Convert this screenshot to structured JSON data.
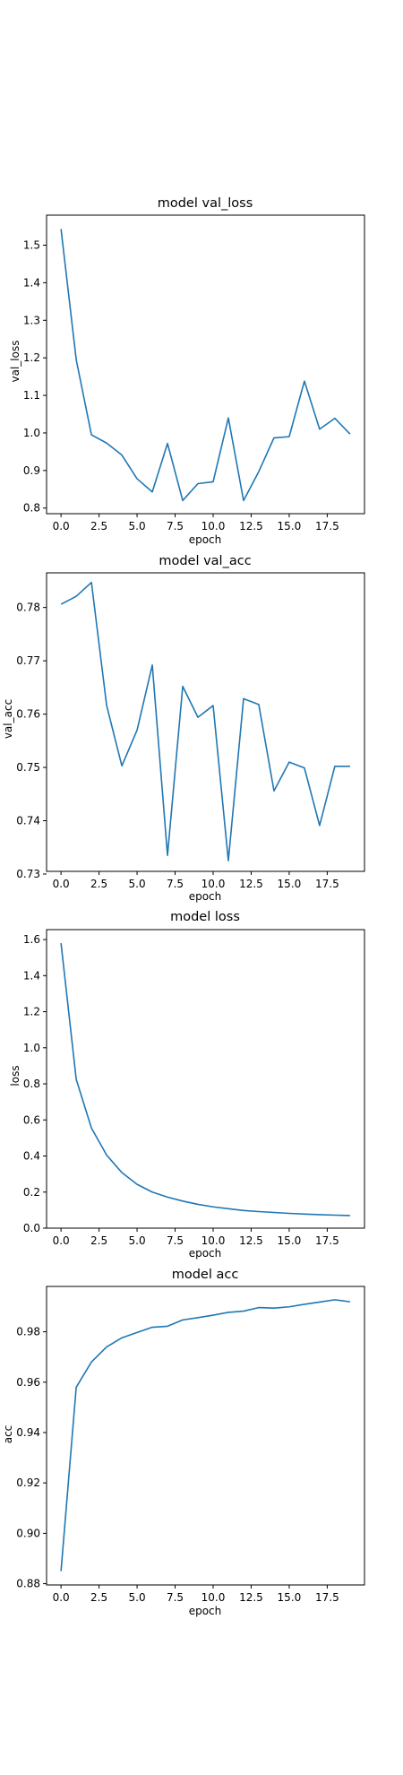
{
  "chart_data": [
    {
      "type": "line",
      "title": "model val_loss",
      "xlabel": "epoch",
      "ylabel": "val_loss",
      "xlim": [
        -0.95,
        19.95
      ],
      "ylim": [
        0.785,
        1.58
      ],
      "x_ticks": [
        0,
        2.5,
        5,
        7.5,
        10,
        12.5,
        15,
        17.5
      ],
      "x_tick_labels": [
        "0.0",
        "2.5",
        "5.0",
        "7.5",
        "10.0",
        "12.5",
        "15.0",
        "17.5"
      ],
      "y_ticks": [
        0.8,
        0.9,
        1.0,
        1.1,
        1.2,
        1.3,
        1.4,
        1.5
      ],
      "y_tick_labels": [
        "0.8",
        "0.9",
        "1.0",
        "1.1",
        "1.2",
        "1.3",
        "1.4",
        "1.5"
      ],
      "grid": false,
      "color": "#1f77b4",
      "x": [
        0,
        1,
        2,
        3,
        4,
        5,
        6,
        7,
        8,
        9,
        10,
        11,
        12,
        13,
        14,
        15,
        16,
        17,
        18,
        19
      ],
      "values": [
        1.543,
        1.195,
        0.995,
        0.973,
        0.941,
        0.878,
        0.843,
        0.972,
        0.82,
        0.865,
        0.87,
        1.04,
        0.82,
        0.897,
        0.987,
        0.99,
        1.138,
        1.01,
        1.039,
        0.997
      ]
    },
    {
      "type": "line",
      "title": "model val_acc",
      "xlabel": "epoch",
      "ylabel": "val_acc",
      "xlim": [
        -0.95,
        19.95
      ],
      "ylim": [
        0.7305,
        0.7865
      ],
      "x_ticks": [
        0,
        2.5,
        5,
        7.5,
        10,
        12.5,
        15,
        17.5
      ],
      "x_tick_labels": [
        "0.0",
        "2.5",
        "5.0",
        "7.5",
        "10.0",
        "12.5",
        "15.0",
        "17.5"
      ],
      "y_ticks": [
        0.73,
        0.74,
        0.75,
        0.76,
        0.77,
        0.78
      ],
      "y_tick_labels": [
        "0.73",
        "0.74",
        "0.75",
        "0.76",
        "0.77",
        "0.78"
      ],
      "grid": false,
      "color": "#1f77b4",
      "x": [
        0,
        1,
        2,
        3,
        4,
        5,
        6,
        7,
        8,
        9,
        10,
        11,
        12,
        13,
        14,
        15,
        16,
        17,
        18,
        19
      ],
      "values": [
        0.7806,
        0.7821,
        0.7847,
        0.7616,
        0.7503,
        0.757,
        0.7692,
        0.7335,
        0.7652,
        0.7594,
        0.7616,
        0.7325,
        0.7629,
        0.7618,
        0.7456,
        0.751,
        0.7499,
        0.7391,
        0.7502,
        0.7502
      ]
    },
    {
      "type": "line",
      "title": "model loss",
      "xlabel": "epoch",
      "ylabel": "loss",
      "xlim": [
        -0.95,
        19.95
      ],
      "ylim": [
        0.0,
        1.655
      ],
      "x_ticks": [
        0,
        2.5,
        5,
        7.5,
        10,
        12.5,
        15,
        17.5
      ],
      "x_tick_labels": [
        "0.0",
        "2.5",
        "5.0",
        "7.5",
        "10.0",
        "12.5",
        "15.0",
        "17.5"
      ],
      "y_ticks": [
        0.0,
        0.2,
        0.4,
        0.6,
        0.8,
        1.0,
        1.2,
        1.4,
        1.6
      ],
      "y_tick_labels": [
        "0.0",
        "0.2",
        "0.4",
        "0.6",
        "0.8",
        "1.0",
        "1.2",
        "1.4",
        "1.6"
      ],
      "grid": false,
      "color": "#1f77b4",
      "x": [
        0,
        1,
        2,
        3,
        4,
        5,
        6,
        7,
        8,
        9,
        10,
        11,
        12,
        13,
        14,
        15,
        16,
        17,
        18,
        19
      ],
      "values": [
        1.58,
        0.825,
        0.555,
        0.405,
        0.308,
        0.243,
        0.2,
        0.172,
        0.15,
        0.132,
        0.118,
        0.108,
        0.098,
        0.092,
        0.087,
        0.082,
        0.078,
        0.075,
        0.072,
        0.07
      ]
    },
    {
      "type": "line",
      "title": "model acc",
      "xlabel": "epoch",
      "ylabel": "acc",
      "xlim": [
        -0.95,
        19.95
      ],
      "ylim": [
        0.8795,
        0.998
      ],
      "x_ticks": [
        0,
        2.5,
        5,
        7.5,
        10,
        12.5,
        15,
        17.5
      ],
      "x_tick_labels": [
        "0.0",
        "2.5",
        "5.0",
        "7.5",
        "10.0",
        "12.5",
        "15.0",
        "17.5"
      ],
      "y_ticks": [
        0.88,
        0.9,
        0.92,
        0.94,
        0.96,
        0.98
      ],
      "y_tick_labels": [
        "0.88",
        "0.90",
        "0.92",
        "0.94",
        "0.96",
        "0.98"
      ],
      "grid": false,
      "color": "#1f77b4",
      "x": [
        0,
        1,
        2,
        3,
        4,
        5,
        6,
        7,
        8,
        9,
        10,
        11,
        12,
        13,
        14,
        15,
        16,
        17,
        18,
        19
      ],
      "values": [
        0.885,
        0.958,
        0.968,
        0.974,
        0.9776,
        0.9797,
        0.9818,
        0.9822,
        0.9847,
        0.9856,
        0.9866,
        0.9877,
        0.9882,
        0.9896,
        0.9894,
        0.9899,
        0.9909,
        0.9918,
        0.9927,
        0.9919
      ]
    }
  ]
}
